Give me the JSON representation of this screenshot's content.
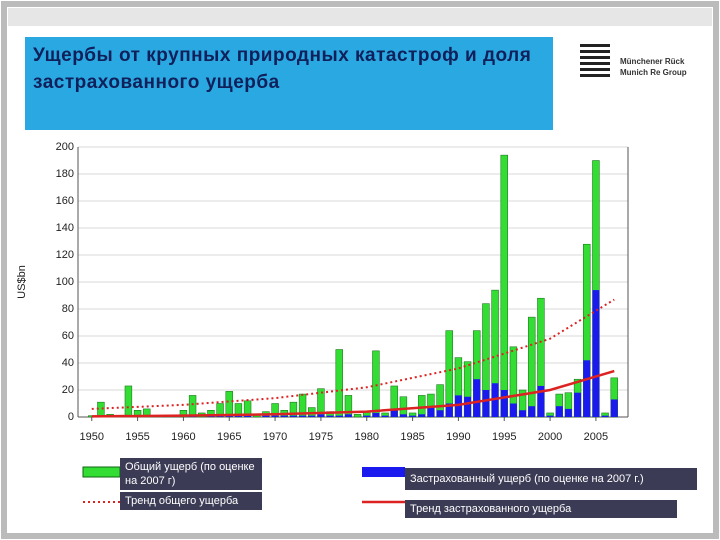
{
  "chart_data": {
    "type": "bar",
    "title": "Ущербы от крупных природных катастроф и доля застрахованного ущерба",
    "logo": [
      "Münchener Rück",
      "Munich Re Group"
    ],
    "y_label": "US$bn",
    "x": [
      1950,
      1951,
      1952,
      1953,
      1954,
      1955,
      1956,
      1957,
      1958,
      1959,
      1960,
      1961,
      1962,
      1963,
      1964,
      1965,
      1966,
      1967,
      1968,
      1969,
      1970,
      1971,
      1972,
      1973,
      1974,
      1975,
      1976,
      1977,
      1978,
      1979,
      1980,
      1981,
      1982,
      1983,
      1984,
      1985,
      1986,
      1987,
      1988,
      1989,
      1990,
      1991,
      1992,
      1993,
      1994,
      1995,
      1996,
      1997,
      1998,
      1999,
      2000,
      2001,
      2002,
      2003,
      2004,
      2005,
      2006,
      2007
    ],
    "xlim": [
      1948.5,
      2008.5
    ],
    "xticks": [
      1950,
      1955,
      1960,
      1965,
      1970,
      1975,
      1980,
      1985,
      1990,
      1995,
      2000,
      2005
    ],
    "ylim": [
      0,
      200
    ],
    "yticks": [
      0,
      20,
      40,
      60,
      80,
      100,
      120,
      140,
      160,
      180,
      200
    ],
    "grid": true,
    "series": [
      {
        "name": "Общий ущерб (по оценке на 2007 г)",
        "color": "#33dd33",
        "values": [
          1,
          11,
          2,
          1,
          23,
          5,
          6,
          1,
          1,
          1,
          5,
          16,
          3,
          5,
          10,
          19,
          10,
          12,
          2,
          4,
          10,
          5,
          11,
          17,
          7,
          21,
          4,
          50,
          16,
          2,
          4,
          49,
          3,
          23,
          15,
          3,
          16,
          17,
          24,
          64,
          44,
          41,
          64,
          84,
          94,
          194,
          52,
          20,
          74,
          88,
          3,
          17,
          18,
          28,
          128,
          190,
          3,
          29
        ]
      },
      {
        "name": "Застрахованный ущерб (по оценке на 2007 г.)",
        "color": "#1a1aee",
        "values": [
          0,
          1,
          0,
          0,
          1,
          1,
          1,
          0,
          0,
          0,
          0,
          1,
          0,
          1,
          1,
          2,
          1,
          1,
          0,
          1,
          1,
          1,
          1,
          1,
          1,
          2,
          1,
          1,
          2,
          0,
          1,
          3,
          1,
          5,
          2,
          1,
          2,
          7,
          5,
          10,
          16,
          15,
          28,
          20,
          25,
          20,
          10,
          5,
          8,
          23,
          1,
          8,
          6,
          18,
          42,
          94,
          1,
          13
        ]
      }
    ],
    "trends": [
      {
        "name": "Тренд общего ущерба",
        "color": "#dd2222",
        "dash": true,
        "x": [
          1950,
          1960,
          1970,
          1980,
          1990,
          2000,
          2007
        ],
        "values": [
          6,
          9,
          14,
          22,
          36,
          58,
          87
        ]
      },
      {
        "name": "Тренд застрахованного ущерба",
        "color": "#dd2222",
        "dash": false,
        "x": [
          1950,
          1960,
          1970,
          1980,
          1990,
          2000,
          2007
        ],
        "values": [
          0.5,
          1,
          2,
          4,
          9,
          20,
          34
        ]
      }
    ]
  }
}
